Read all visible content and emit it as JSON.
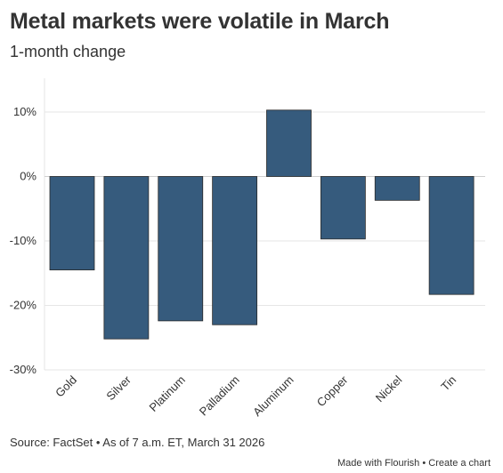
{
  "header": {
    "title": "Metal markets were volatile in March",
    "subtitle": "1-month change"
  },
  "footer": {
    "source": "Source: FactSet • As of 7 a.m. ET, March 31 2026",
    "made_with": "Made with Flourish",
    "separator": "•",
    "create_chart": "Create a chart"
  },
  "colors": {
    "bar": "#365b7d",
    "bar_stroke": "#2a2a2a",
    "grid": "#e6e6e6",
    "zero_line": "#cfcfcf"
  },
  "chart_data": {
    "type": "bar",
    "title": "Metal markets were volatile in March",
    "subtitle": "1-month change",
    "categories": [
      "Gold",
      "Silver",
      "Platinum",
      "Palladium",
      "Aluminum",
      "Copper",
      "Nickel",
      "Tin"
    ],
    "values": [
      -14.5,
      -25.2,
      -22.4,
      -23.0,
      10.3,
      -9.7,
      -3.7,
      -18.3
    ],
    "ylim": [
      -30,
      10
    ],
    "yticks": [
      10,
      0,
      -10,
      -20,
      -30
    ],
    "ytick_labels": [
      "10%",
      "0%",
      "-10%",
      "-20%",
      "-30%"
    ],
    "grid": true,
    "legend": "none"
  }
}
